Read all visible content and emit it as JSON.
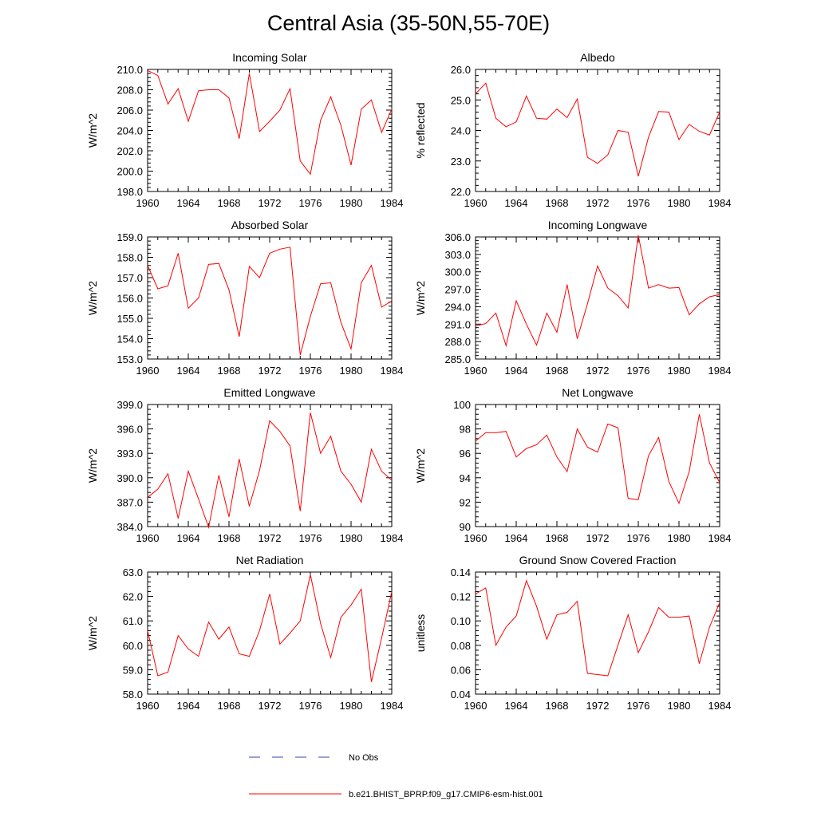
{
  "title": "Central Asia (35-50N,55-70E)",
  "colors": {
    "model": "#ff0000",
    "obs": "#3344aa",
    "axis": "#000000"
  },
  "legend": {
    "obs_label": "No Obs",
    "model_label": "b.e21.BHIST_BPRP.f09_g17.CMIP6-esm-hist.001"
  },
  "chart_data": [
    {
      "type": "line",
      "title": "Incoming Solar",
      "ylabel": "W/m^2",
      "xlim": [
        1960,
        1984
      ],
      "ylim": [
        198,
        210
      ],
      "xticks": [
        "1960",
        "1964",
        "1968",
        "1972",
        "1976",
        "1980",
        "1984"
      ],
      "yticks": [
        "198.0",
        "200.0",
        "202.0",
        "204.0",
        "206.0",
        "208.0",
        "210.0"
      ],
      "x": [
        1960,
        1961,
        1962,
        1963,
        1964,
        1965,
        1966,
        1967,
        1968,
        1969,
        1970,
        1971,
        1972,
        1973,
        1974,
        1975,
        1976,
        1977,
        1978,
        1979,
        1980,
        1981,
        1982,
        1983,
        1984
      ],
      "values": [
        209.9,
        209.4,
        206.6,
        208.1,
        204.9,
        207.9,
        208.0,
        208.0,
        207.2,
        203.2,
        209.6,
        203.9,
        204.9,
        206.0,
        208.1,
        201.0,
        199.7,
        205.0,
        207.3,
        204.5,
        200.6,
        206.1,
        207.0,
        203.8,
        206.1
      ]
    },
    {
      "type": "line",
      "title": "Albedo",
      "ylabel": "% reflected",
      "xlim": [
        1960,
        1984
      ],
      "ylim": [
        22,
        26
      ],
      "xticks": [
        "1960",
        "1964",
        "1968",
        "1972",
        "1976",
        "1980",
        "1984"
      ],
      "yticks": [
        "22.0",
        "23.0",
        "24.0",
        "25.0",
        "26.0"
      ],
      "x": [
        1960,
        1961,
        1962,
        1963,
        1964,
        1965,
        1966,
        1967,
        1968,
        1969,
        1970,
        1971,
        1972,
        1973,
        1974,
        1975,
        1976,
        1977,
        1978,
        1979,
        1980,
        1981,
        1982,
        1983,
        1984
      ],
      "values": [
        25.2,
        25.55,
        24.4,
        24.12,
        24.28,
        25.13,
        24.4,
        24.37,
        24.7,
        24.42,
        25.03,
        23.12,
        22.92,
        23.2,
        24.0,
        23.94,
        22.5,
        23.78,
        24.62,
        24.6,
        23.7,
        24.2,
        23.97,
        23.85,
        24.6
      ]
    },
    {
      "type": "line",
      "title": "Absorbed Solar",
      "ylabel": "W/m^2",
      "xlim": [
        1960,
        1984
      ],
      "ylim": [
        153,
        159
      ],
      "xticks": [
        "1960",
        "1964",
        "1968",
        "1972",
        "1976",
        "1980",
        "1984"
      ],
      "yticks": [
        "153.0",
        "154.0",
        "155.0",
        "156.0",
        "157.0",
        "158.0",
        "159.0"
      ],
      "x": [
        1960,
        1961,
        1962,
        1963,
        1964,
        1965,
        1966,
        1967,
        1968,
        1969,
        1970,
        1971,
        1972,
        1973,
        1974,
        1975,
        1976,
        1977,
        1978,
        1979,
        1980,
        1981,
        1982,
        1983,
        1984
      ],
      "values": [
        157.6,
        156.45,
        156.6,
        158.2,
        155.5,
        156.0,
        157.65,
        157.7,
        156.4,
        154.1,
        157.55,
        157.0,
        158.2,
        158.4,
        158.5,
        153.2,
        155.1,
        156.7,
        156.75,
        154.8,
        153.5,
        156.75,
        157.6,
        155.55,
        155.85
      ]
    },
    {
      "type": "line",
      "title": "Incoming Longwave",
      "ylabel": "W/m^2",
      "xlim": [
        1960,
        1984
      ],
      "ylim": [
        285,
        306
      ],
      "xticks": [
        "1960",
        "1964",
        "1968",
        "1972",
        "1976",
        "1980",
        "1984"
      ],
      "yticks": [
        "285.0",
        "288.0",
        "291.0",
        "294.0",
        "297.0",
        "300.0",
        "303.0",
        "306.0"
      ],
      "x": [
        1960,
        1961,
        1962,
        1963,
        1964,
        1965,
        1966,
        1967,
        1968,
        1969,
        1970,
        1971,
        1972,
        1973,
        1974,
        1975,
        1976,
        1977,
        1978,
        1979,
        1980,
        1981,
        1982,
        1983,
        1984
      ],
      "values": [
        290.7,
        291.1,
        292.9,
        287.3,
        295.0,
        291.0,
        287.4,
        292.9,
        289.6,
        297.8,
        288.5,
        294.5,
        301.0,
        297.2,
        295.9,
        293.8,
        306.3,
        297.2,
        297.8,
        297.2,
        297.3,
        292.6,
        294.5,
        295.7,
        296.1
      ]
    },
    {
      "type": "line",
      "title": "Emitted Longwave",
      "ylabel": "W/m^2",
      "xlim": [
        1960,
        1984
      ],
      "ylim": [
        384,
        399
      ],
      "xticks": [
        "1960",
        "1964",
        "1968",
        "1972",
        "1976",
        "1980",
        "1984"
      ],
      "yticks": [
        "384.0",
        "387.0",
        "390.0",
        "393.0",
        "396.0",
        "399.0"
      ],
      "x": [
        1960,
        1961,
        1962,
        1963,
        1964,
        1965,
        1966,
        1967,
        1968,
        1969,
        1970,
        1971,
        1972,
        1973,
        1974,
        1975,
        1976,
        1977,
        1978,
        1979,
        1980,
        1981,
        1982,
        1983,
        1984
      ],
      "values": [
        387.6,
        388.6,
        390.5,
        385.0,
        390.8,
        387.4,
        383.9,
        390.3,
        385.2,
        392.3,
        386.5,
        390.9,
        397.0,
        395.7,
        393.9,
        385.9,
        398.0,
        393.0,
        395.1,
        390.8,
        389.2,
        387.0,
        393.5,
        390.8,
        389.7
      ]
    },
    {
      "type": "line",
      "title": "Net Longwave",
      "ylabel": "W/m^2",
      "xlim": [
        1960,
        1984
      ],
      "ylim": [
        90,
        100
      ],
      "xticks": [
        "1960",
        "1964",
        "1968",
        "1972",
        "1976",
        "1980",
        "1984"
      ],
      "yticks": [
        "90",
        "92",
        "94",
        "96",
        "98",
        "100"
      ],
      "x": [
        1960,
        1961,
        1962,
        1963,
        1964,
        1965,
        1966,
        1967,
        1968,
        1969,
        1970,
        1971,
        1972,
        1973,
        1974,
        1975,
        1976,
        1977,
        1978,
        1979,
        1980,
        1981,
        1982,
        1983,
        1984
      ],
      "values": [
        97.0,
        97.7,
        97.7,
        97.8,
        95.7,
        96.4,
        96.7,
        97.5,
        95.7,
        94.5,
        98.0,
        96.5,
        96.1,
        98.4,
        98.1,
        92.3,
        92.2,
        95.8,
        97.3,
        93.7,
        91.9,
        94.5,
        99.2,
        95.2,
        93.6
      ]
    },
    {
      "type": "line",
      "title": "Net Radiation",
      "ylabel": "W/m^2",
      "xlim": [
        1960,
        1984
      ],
      "ylim": [
        58,
        63
      ],
      "xticks": [
        "1960",
        "1964",
        "1968",
        "1972",
        "1976",
        "1980",
        "1984"
      ],
      "yticks": [
        "58.0",
        "59.0",
        "60.0",
        "61.0",
        "62.0",
        "63.0"
      ],
      "x": [
        1960,
        1961,
        1962,
        1963,
        1964,
        1965,
        1966,
        1967,
        1968,
        1969,
        1970,
        1971,
        1972,
        1973,
        1974,
        1975,
        1976,
        1977,
        1978,
        1979,
        1980,
        1981,
        1982,
        1983,
        1984
      ],
      "values": [
        60.6,
        58.75,
        58.9,
        60.4,
        59.85,
        59.55,
        60.95,
        60.25,
        60.75,
        59.65,
        59.55,
        60.6,
        62.1,
        60.05,
        60.5,
        61.0,
        62.9,
        60.9,
        59.5,
        61.15,
        61.65,
        62.3,
        58.5,
        60.3,
        62.2
      ]
    },
    {
      "type": "line",
      "title": "Ground Snow Covered Fraction",
      "ylabel": "unitless",
      "xlim": [
        1960,
        1984
      ],
      "ylim": [
        0.04,
        0.14
      ],
      "xticks": [
        "1960",
        "1964",
        "1968",
        "1972",
        "1976",
        "1980",
        "1984"
      ],
      "yticks": [
        "0.04",
        "0.06",
        "0.08",
        "0.10",
        "0.12",
        "0.14"
      ],
      "x": [
        1960,
        1961,
        1962,
        1963,
        1964,
        1965,
        1966,
        1967,
        1968,
        1969,
        1970,
        1971,
        1972,
        1973,
        1974,
        1975,
        1976,
        1977,
        1978,
        1979,
        1980,
        1981,
        1982,
        1983,
        1984
      ],
      "values": [
        0.122,
        0.127,
        0.08,
        0.095,
        0.104,
        0.133,
        0.112,
        0.085,
        0.105,
        0.107,
        0.116,
        0.057,
        0.056,
        0.055,
        0.08,
        0.105,
        0.074,
        0.091,
        0.111,
        0.103,
        0.103,
        0.104,
        0.065,
        0.095,
        0.115
      ]
    }
  ]
}
